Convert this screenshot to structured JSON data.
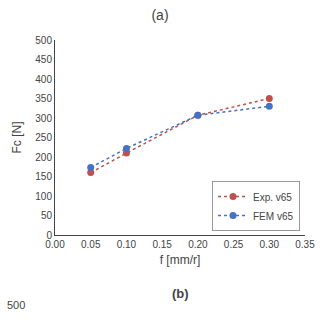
{
  "chart_data": {
    "type": "line",
    "title": "(a)",
    "x_label": "f [mm/r]",
    "y_label": "Fc [N]",
    "series": [
      {
        "name": "Exp. v65",
        "color": "#c0504d",
        "line_style": "dotted",
        "marker": "circle",
        "x": [
          0.05,
          0.1,
          0.2,
          0.3
        ],
        "values": [
          160,
          210,
          307,
          350
        ]
      },
      {
        "name": "FEM v65",
        "color": "#4472c4",
        "line_style": "dotted",
        "marker": "circle",
        "x": [
          0.05,
          0.1,
          0.2,
          0.3
        ],
        "values": [
          173,
          222,
          307,
          330
        ]
      }
    ],
    "xlim": [
      0.0,
      0.35
    ],
    "ylim": [
      0,
      500
    ],
    "xticks": [
      {
        "value": 0,
        "label": "0.00"
      },
      0.05,
      {
        "value": 0.1,
        "label": "0.10"
      },
      0.15,
      {
        "value": 0.2,
        "label": "0.20"
      },
      0.25,
      {
        "value": 0.3,
        "label": "0.30"
      },
      0.35
    ],
    "yticks": [
      0,
      50,
      100,
      150,
      200,
      250,
      300,
      350,
      400,
      450,
      500
    ],
    "legend": "lower right",
    "grid": false,
    "annotations": [
      "(b)",
      "500"
    ]
  }
}
